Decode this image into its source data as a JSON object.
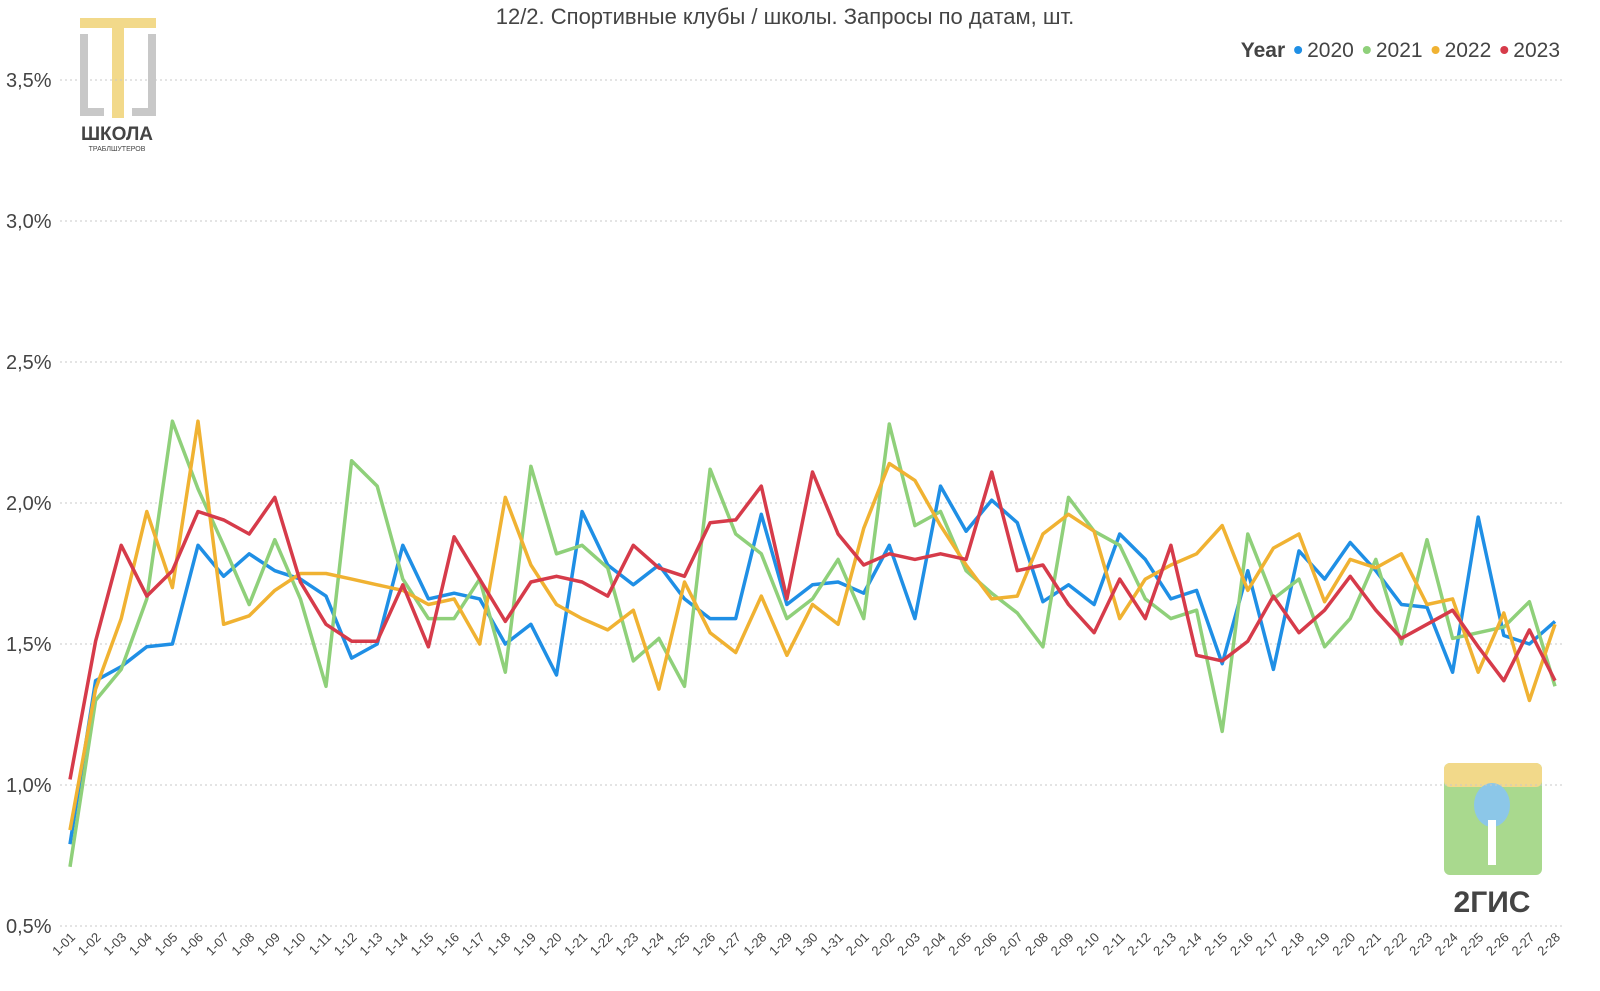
{
  "chart_data": {
    "type": "line",
    "title": "12/2. Спортивные клубы / школы. Запросы по датам, шт.",
    "legend_title": "Year",
    "legend_position": "top-right",
    "watermarks": [
      "ШКОЛА",
      "ТРАБЛШУТЕРОВ",
      "2ГИС"
    ],
    "categories": [
      "1-01",
      "1-02",
      "1-03",
      "1-04",
      "1-05",
      "1-06",
      "1-07",
      "1-08",
      "1-09",
      "1-10",
      "1-11",
      "1-12",
      "1-13",
      "1-14",
      "1-15",
      "1-16",
      "1-17",
      "1-18",
      "1-19",
      "1-20",
      "1-21",
      "1-22",
      "1-23",
      "1-24",
      "1-25",
      "1-26",
      "1-27",
      "1-28",
      "1-29",
      "1-30",
      "1-31",
      "2-01",
      "2-02",
      "2-03",
      "2-04",
      "2-05",
      "2-06",
      "2-07",
      "2-08",
      "2-09",
      "2-10",
      "2-11",
      "2-12",
      "2-13",
      "2-14",
      "2-15",
      "2-16",
      "2-17",
      "2-18",
      "2-19",
      "2-20",
      "2-21",
      "2-22",
      "2-23",
      "2-24",
      "2-25",
      "2-26",
      "2-27",
      "2-28"
    ],
    "ylim": [
      0.5,
      3.5
    ],
    "yticks": [
      {
        "value": 0.5,
        "label": "0,5%"
      },
      {
        "value": 1.0,
        "label": "1,0%"
      },
      {
        "value": 1.5,
        "label": "1,5%"
      },
      {
        "value": 2.0,
        "label": "2,0%"
      },
      {
        "value": 2.5,
        "label": "2,5%"
      },
      {
        "value": 3.0,
        "label": "3,0%"
      },
      {
        "value": 3.5,
        "label": "3,5%"
      }
    ],
    "grid": true,
    "series": [
      {
        "name": "2020",
        "color": "#1f8fe5",
        "values": [
          0.79,
          1.37,
          1.42,
          1.49,
          1.5,
          1.85,
          1.74,
          1.82,
          1.76,
          1.73,
          1.67,
          1.45,
          1.5,
          1.85,
          1.66,
          1.68,
          1.66,
          1.5,
          1.57,
          1.39,
          1.97,
          1.78,
          1.71,
          1.78,
          1.66,
          1.59,
          1.59,
          1.96,
          1.64,
          1.71,
          1.72,
          1.68,
          1.85,
          1.59,
          2.06,
          1.9,
          2.01,
          1.93,
          1.65,
          1.71,
          1.64,
          1.89,
          1.8,
          1.66,
          1.69,
          1.43,
          1.76,
          1.41,
          1.83,
          1.73,
          1.86,
          1.76,
          1.64,
          1.63,
          1.4,
          1.95,
          1.53,
          1.5,
          1.58
        ]
      },
      {
        "name": "2021",
        "color": "#8fd07a",
        "values": [
          0.71,
          1.3,
          1.41,
          1.66,
          2.29,
          2.05,
          1.85,
          1.64,
          1.87,
          1.66,
          1.35,
          2.15,
          2.06,
          1.73,
          1.59,
          1.59,
          1.73,
          1.4,
          2.13,
          1.82,
          1.85,
          1.77,
          1.44,
          1.52,
          1.35,
          2.12,
          1.89,
          1.82,
          1.59,
          1.66,
          1.8,
          1.59,
          2.28,
          1.92,
          1.97,
          1.76,
          1.68,
          1.61,
          1.49,
          2.02,
          1.9,
          1.85,
          1.66,
          1.59,
          1.62,
          1.19,
          1.89,
          1.66,
          1.73,
          1.49,
          1.59,
          1.8,
          1.5,
          1.87,
          1.52,
          1.54,
          1.56,
          1.65,
          1.35
        ]
      },
      {
        "name": "2022",
        "color": "#f0b232",
        "values": [
          0.84,
          1.34,
          1.59,
          1.97,
          1.7,
          2.29,
          1.57,
          1.6,
          1.69,
          1.75,
          1.75,
          1.73,
          1.71,
          1.69,
          1.64,
          1.66,
          1.5,
          2.02,
          1.78,
          1.64,
          1.59,
          1.55,
          1.62,
          1.34,
          1.72,
          1.54,
          1.47,
          1.67,
          1.46,
          1.64,
          1.57,
          1.91,
          2.14,
          2.08,
          1.92,
          1.78,
          1.66,
          1.67,
          1.89,
          1.96,
          1.9,
          1.59,
          1.73,
          1.78,
          1.82,
          1.92,
          1.69,
          1.84,
          1.89,
          1.65,
          1.8,
          1.77,
          1.82,
          1.64,
          1.66,
          1.4,
          1.61,
          1.3,
          1.57
        ]
      },
      {
        "name": "2023",
        "color": "#d63b4a",
        "values": [
          1.02,
          1.51,
          1.85,
          1.67,
          1.76,
          1.97,
          1.94,
          1.89,
          2.02,
          1.72,
          1.57,
          1.51,
          1.51,
          1.71,
          1.49,
          1.88,
          1.73,
          1.58,
          1.72,
          1.74,
          1.72,
          1.67,
          1.85,
          1.77,
          1.74,
          1.93,
          1.94,
          2.06,
          1.66,
          2.11,
          1.89,
          1.78,
          1.82,
          1.8,
          1.82,
          1.8,
          2.11,
          1.76,
          1.78,
          1.64,
          1.54,
          1.73,
          1.59,
          1.85,
          1.46,
          1.44,
          1.51,
          1.67,
          1.54,
          1.62,
          1.74,
          1.62,
          1.52,
          1.57,
          1.62,
          1.49,
          1.37,
          1.55,
          1.37
        ]
      }
    ]
  }
}
